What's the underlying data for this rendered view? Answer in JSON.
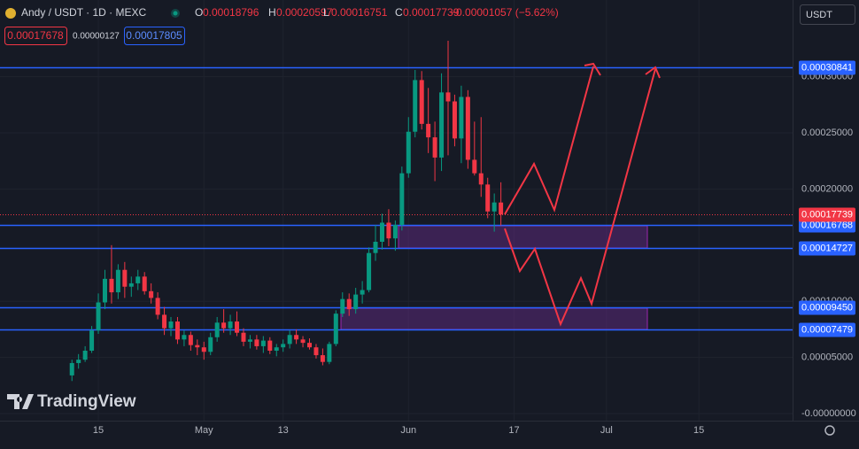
{
  "header": {
    "symbol": "Andy / USDT · 1D · MEXC",
    "ohlc": [
      {
        "key": "O",
        "value": "0.00018796"
      },
      {
        "key": "H",
        "value": "0.00020597"
      },
      {
        "key": "L",
        "value": "0.00016751"
      },
      {
        "key": "C",
        "value": "0.00017739"
      }
    ],
    "change": "−0.00001057 (−5.62%)",
    "sell": "0.00017678",
    "spread": "0.00000127",
    "buy": "0.00017805",
    "currency": "USDT"
  },
  "logo": "TradingView",
  "chart_data": {
    "type": "candlestick",
    "xlim": [
      -14.9,
      105.2
    ],
    "xticks": [
      {
        "value": 0,
        "label": "15"
      },
      {
        "value": 16,
        "label": "May"
      },
      {
        "value": 28,
        "label": "13"
      },
      {
        "value": 47,
        "label": "Jun"
      },
      {
        "value": 63,
        "label": "17"
      },
      {
        "value": 77,
        "label": "Jul"
      },
      {
        "value": 91,
        "label": "15"
      }
    ],
    "ylim": [
      -6.3e-06,
      0.0003683
    ],
    "yticks": [
      {
        "value": 0.0003,
        "label": "0.00030000"
      },
      {
        "value": 0.00025,
        "label": "0.00025000"
      },
      {
        "value": 0.0002,
        "label": "0.00020000"
      },
      {
        "value": 0.0001,
        "label": "0.00010000"
      },
      {
        "value": 5e-05,
        "label": "0.00005000"
      },
      {
        "value": 0,
        "label": "-0.00000000"
      }
    ],
    "grid": true,
    "up_color": "#089981",
    "down_color": "#f23645",
    "levels": [
      {
        "value": 0.00030841,
        "label": "0.00030841"
      },
      {
        "value": 0.00016768,
        "label": "0.00016768"
      },
      {
        "value": 0.00014727,
        "label": "0.00014727"
      },
      {
        "value": 9.45e-05,
        "label": "0.00009450"
      },
      {
        "value": 7.479e-05,
        "label": "0.00007479"
      }
    ],
    "level_color": "#2962ff",
    "last_price": {
      "value": 0.00017739,
      "label": "0.00017739"
    },
    "x": [
      -4,
      -3,
      -2,
      -1,
      0,
      1,
      2,
      3,
      4,
      5,
      6,
      7,
      8,
      9,
      10,
      11,
      12,
      13,
      14,
      15,
      16,
      17,
      18,
      19,
      20,
      21,
      22,
      23,
      24,
      25,
      26,
      27,
      28,
      29,
      30,
      31,
      32,
      33,
      34,
      35,
      36,
      37,
      38,
      39,
      40,
      41,
      42,
      43,
      44,
      45,
      46,
      47,
      48,
      49,
      50,
      51,
      52,
      53,
      54,
      55,
      56,
      57,
      58,
      59,
      60,
      61
    ],
    "open": [
      3.4e-05,
      4.5e-05,
      4.8e-05,
      5.6e-05,
      7.4e-05,
      9.9e-05,
      0.00012,
      0.000108,
      0.000128,
      0.000113,
      0.000116,
      0.000122,
      0.000109,
      0.000103,
      8.8e-05,
      7.6e-05,
      8.2e-05,
      6.6e-05,
      7e-05,
      6.1e-05,
      5.9e-05,
      5.5e-05,
      6.8e-05,
      8.1e-05,
      7.6e-05,
      8.2e-05,
      7.2e-05,
      6.4e-05,
      6.6e-05,
      6e-05,
      6.5e-05,
      5.6e-05,
      5.9e-05,
      6.2e-05,
      7e-05,
      6.6e-05,
      6.3e-05,
      5.9e-05,
      5.2e-05,
      4.6e-05,
      6.2e-05,
      8.9e-05,
      0.000102,
      9.3e-05,
      0.000106,
      0.00011,
      0.000143,
      0.000153,
      0.00017,
      0.000156,
      0.000168,
      0.000214,
      0.000251,
      0.000297,
      0.000258,
      0.000246,
      0.000228,
      0.000286,
      0.000278,
      0.000245,
      0.000282,
      0.000226,
      0.000214,
      0.000204,
      0.00018,
      0.00018796
    ],
    "high": [
      4.8e-05,
      5.3e-05,
      6e-05,
      7.8e-05,
      0.000107,
      0.000128,
      0.00015,
      0.000133,
      0.000135,
      0.000122,
      0.000128,
      0.000126,
      0.000116,
      0.000108,
      9.5e-05,
      8.6e-05,
      8.6e-05,
      7.4e-05,
      7.3e-05,
      6.6e-05,
      6.4e-05,
      7.2e-05,
      8.6e-05,
      9.3e-05,
      8.8e-05,
      9.1e-05,
      7.6e-05,
      7e-05,
      7e-05,
      6.9e-05,
      6.8e-05,
      6.2e-05,
      6.6e-05,
      7.4e-05,
      7.5e-05,
      6.9e-05,
      6.7e-05,
      6.2e-05,
      5.8e-05,
      6.4e-05,
      9.2e-05,
      0.000108,
      0.000107,
      0.000112,
      0.000118,
      0.000148,
      0.000168,
      0.000178,
      0.000182,
      0.000172,
      0.00022,
      0.000264,
      0.000306,
      0.000305,
      0.00029,
      0.00026,
      0.000303,
      0.000332,
      0.000284,
      0.000292,
      0.000288,
      0.00026,
      0.000264,
      0.00021,
      0.000196,
      0.00020597
    ],
    "low": [
      2.9e-05,
      4e-05,
      4.6e-05,
      5.4e-05,
      7.1e-05,
      9.3e-05,
      9.8e-05,
      0.000102,
      0.000103,
      0.000104,
      0.00011,
      0.000106,
      9.8e-05,
      8.4e-05,
      7e-05,
      6.9e-05,
      6.2e-05,
      6e-05,
      5.6e-05,
      5.2e-05,
      4.8e-05,
      5.2e-05,
      6.4e-05,
      7.2e-05,
      7e-05,
      6.9e-05,
      6e-05,
      5.8e-05,
      5.7e-05,
      5.4e-05,
      5.3e-05,
      5.1e-05,
      5.5e-05,
      5.8e-05,
      6.2e-05,
      5.9e-05,
      5.7e-05,
      4.9e-05,
      4.3e-05,
      4.4e-05,
      6e-05,
      8.6e-05,
      8.7e-05,
      8.9e-05,
      9.8e-05,
      0.000108,
      0.000136,
      0.000146,
      0.000149,
      0.000145,
      0.000163,
      0.00021,
      0.000246,
      0.000253,
      0.000232,
      0.000207,
      0.000216,
      0.00023,
      0.000238,
      0.000223,
      0.000218,
      0.000212,
      0.000193,
      0.000174,
      0.000162,
      0.00016751
    ],
    "close": [
      4.5e-05,
      4.8e-05,
      5.6e-05,
      7.4e-05,
      9.9e-05,
      0.00012,
      0.000108,
      0.000128,
      0.000113,
      0.000116,
      0.000122,
      0.000109,
      0.000103,
      8.8e-05,
      7.6e-05,
      8.2e-05,
      6.6e-05,
      7e-05,
      6.1e-05,
      5.9e-05,
      5.5e-05,
      6.8e-05,
      8.1e-05,
      7.6e-05,
      8.2e-05,
      7.2e-05,
      6.4e-05,
      6.6e-05,
      6e-05,
      6.5e-05,
      5.6e-05,
      5.9e-05,
      6.2e-05,
      7e-05,
      6.6e-05,
      6.3e-05,
      5.9e-05,
      5.2e-05,
      4.6e-05,
      6.2e-05,
      8.9e-05,
      0.000102,
      9.3e-05,
      0.000106,
      0.00011,
      0.000143,
      0.000153,
      0.00017,
      0.000156,
      0.000168,
      0.000214,
      0.000251,
      0.000297,
      0.000258,
      0.000246,
      0.000228,
      0.000286,
      0.000278,
      0.000245,
      0.000282,
      0.000226,
      0.000214,
      0.000204,
      0.00018,
      0.000188,
      0.00017739
    ]
  }
}
